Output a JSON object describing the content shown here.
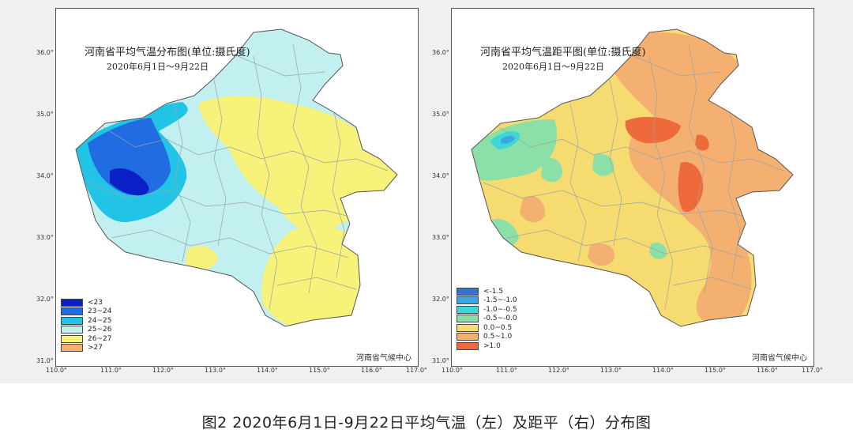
{
  "caption": "图2   2020年6月1日-9月22日平均气温（左）及距平（右）分布图",
  "maps": [
    {
      "title": "河南省平均气温分布图(单位:摄氏度)",
      "subtitle": "2020年6月1日～9月22日",
      "credit": "河南省气候中心",
      "lat_ticks": [
        "36.0°",
        "35.0°",
        "34.0°",
        "33.0°",
        "32.0°",
        "31.0°"
      ],
      "lon_ticks": [
        "110.0°",
        "111.0°",
        "112.0°",
        "113.0°",
        "114.0°",
        "115.0°",
        "116.0°",
        "117.0°"
      ],
      "legend": [
        {
          "label": "<23",
          "color": "#0a1fc8"
        },
        {
          "label": "23~24",
          "color": "#1f6de0"
        },
        {
          "label": "24~25",
          "color": "#22c4e6"
        },
        {
          "label": "25~26",
          "color": "#c2f0f0"
        },
        {
          "label": "26~27",
          "color": "#f6f27a"
        },
        {
          "label": ">27",
          "color": "#f4b070"
        }
      ],
      "base_color": "#c2f0f0",
      "colors": {
        "warm": "#f6f27a",
        "hot": "#f4b070",
        "cool1": "#22c4e6",
        "cool2": "#1f6de0",
        "cool3": "#0a1fc8"
      }
    },
    {
      "title": "河南省平均气温距平图(单位:摄氏度)",
      "subtitle": "2020年6月1日～9月22日",
      "credit": "河南省气候中心",
      "lat_ticks": [
        "36.0°",
        "35.0°",
        "34.0°",
        "33.0°",
        "32.0°",
        "31.0°"
      ],
      "lon_ticks": [
        "110.0°",
        "111.0°",
        "112.0°",
        "113.0°",
        "114.0°",
        "115.0°",
        "116.0°",
        "117.0°"
      ],
      "legend": [
        {
          "label": "<-1.5",
          "color": "#3a6fd8"
        },
        {
          "label": "-1.5~-1.0",
          "color": "#3aa6e6"
        },
        {
          "label": "-1.0~-0.5",
          "color": "#3ad8d8"
        },
        {
          "label": "-0.5~-0.0",
          "color": "#8be0a8"
        },
        {
          "label": "0.0~0.5",
          "color": "#f6dc70"
        },
        {
          "label": "0.5~1.0",
          "color": "#f4b070"
        },
        {
          "label": ">1.0",
          "color": "#ee6a3a"
        }
      ],
      "base_color": "#f6dc70",
      "colors": {
        "warm": "#f4b070",
        "hot": "#ee6a3a",
        "cool1": "#8be0a8",
        "cool2": "#3ad8d8",
        "cool3": "#3aa6e6"
      }
    }
  ]
}
